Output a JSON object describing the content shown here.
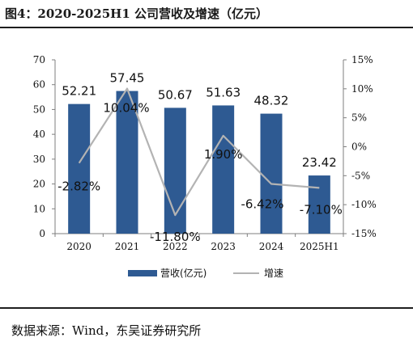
{
  "title": "图4：2020-2025H1 公司营收及增速（亿元）",
  "source": "数据来源：Wind，东吴证券研究所",
  "colors": {
    "bar": "#2e5a92",
    "line": "#b3b3b3",
    "axis": "#7f7f7f"
  },
  "chart_data": {
    "type": "bar",
    "categories": [
      "2020",
      "2021",
      "2022",
      "2023",
      "2024",
      "2025H1"
    ],
    "series": [
      {
        "name": "营收(亿元)",
        "type": "bar",
        "axis": "left",
        "values": [
          52.21,
          57.45,
          50.67,
          51.63,
          48.32,
          23.42
        ],
        "labels": [
          "52.21",
          "57.45",
          "50.67",
          "51.63",
          "48.32",
          "23.42"
        ]
      },
      {
        "name": "增速",
        "type": "line",
        "axis": "right",
        "values": [
          -2.82,
          10.04,
          -11.8,
          1.9,
          -6.42,
          -7.1
        ],
        "labels": [
          "-2.82%",
          "10.04%",
          "-11.80%",
          "1.90%",
          "-6.42%",
          "-7.10%"
        ]
      }
    ],
    "y_left": {
      "min": 0,
      "max": 70,
      "step": 10,
      "ticks": [
        "0",
        "10",
        "20",
        "30",
        "40",
        "50",
        "60",
        "70"
      ]
    },
    "y_right": {
      "min": -15,
      "max": 15,
      "step": 5,
      "ticks": [
        "-15%",
        "-10%",
        "-5%",
        "0%",
        "5%",
        "10%",
        "15%"
      ]
    },
    "grid": false,
    "legend_position": "bottom"
  }
}
